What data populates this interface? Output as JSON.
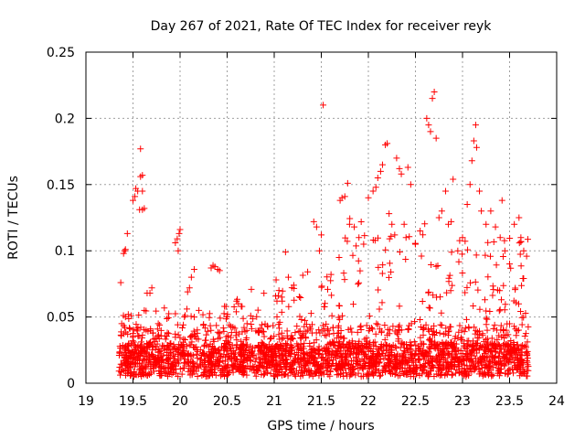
{
  "chart_data": {
    "type": "scatter",
    "title": "Day 267 of 2021, Rate Of TEC Index for receiver reyk",
    "xlabel": "GPS time / hours",
    "ylabel": "ROTI / TECUs",
    "xlim": [
      19,
      24
    ],
    "ylim": [
      0,
      0.25
    ],
    "xticks": [
      "19",
      "19.5",
      "20",
      "20.5",
      "21",
      "21.5",
      "22",
      "22.5",
      "23",
      "23.5",
      "24"
    ],
    "yticks": [
      "0",
      "0.05",
      "0.1",
      "0.15",
      "0.2",
      "0.25"
    ],
    "grid": true,
    "marker": "+",
    "color": "#ff0000",
    "series": [
      {
        "points": [
          [
            19.37,
            0.076
          ],
          [
            19.4,
            0.098
          ],
          [
            19.41,
            0.1
          ],
          [
            19.42,
            0.101
          ],
          [
            19.44,
            0.113
          ],
          [
            19.5,
            0.138
          ],
          [
            19.52,
            0.141
          ],
          [
            19.53,
            0.147
          ],
          [
            19.55,
            0.145
          ],
          [
            19.58,
            0.156
          ],
          [
            19.6,
            0.157
          ],
          [
            19.58,
            0.177
          ],
          [
            19.57,
            0.131
          ],
          [
            19.6,
            0.131
          ],
          [
            19.62,
            0.132
          ],
          [
            19.6,
            0.145
          ],
          [
            19.38,
            0.045
          ],
          [
            19.42,
            0.05
          ],
          [
            19.45,
            0.052
          ],
          [
            19.48,
            0.051
          ],
          [
            19.62,
            0.055
          ],
          [
            19.65,
            0.068
          ],
          [
            19.68,
            0.068
          ],
          [
            19.7,
            0.072
          ],
          [
            19.95,
            0.106
          ],
          [
            19.97,
            0.109
          ],
          [
            19.99,
            0.113
          ],
          [
            20.0,
            0.116
          ],
          [
            19.98,
            0.1
          ],
          [
            20.08,
            0.069
          ],
          [
            20.1,
            0.072
          ],
          [
            20.12,
            0.08
          ],
          [
            20.15,
            0.086
          ],
          [
            20.2,
            0.055
          ],
          [
            20.33,
            0.087
          ],
          [
            20.35,
            0.089
          ],
          [
            20.37,
            0.088
          ],
          [
            20.4,
            0.086
          ],
          [
            20.42,
            0.085
          ],
          [
            20.6,
            0.062
          ],
          [
            20.62,
            0.06
          ],
          [
            20.65,
            0.058
          ],
          [
            21.02,
            0.078
          ],
          [
            21.05,
            0.07
          ],
          [
            21.08,
            0.065
          ],
          [
            21.12,
            0.099
          ],
          [
            21.15,
            0.08
          ],
          [
            21.42,
            0.122
          ],
          [
            21.45,
            0.118
          ],
          [
            21.5,
            0.112
          ],
          [
            21.52,
            0.21
          ],
          [
            21.48,
            0.1
          ],
          [
            21.7,
            0.138
          ],
          [
            21.72,
            0.14
          ],
          [
            21.75,
            0.141
          ],
          [
            21.78,
            0.151
          ],
          [
            21.8,
            0.12
          ],
          [
            21.85,
            0.118
          ],
          [
            21.9,
            0.11
          ],
          [
            21.95,
            0.105
          ],
          [
            22.0,
            0.14
          ],
          [
            22.05,
            0.145
          ],
          [
            22.08,
            0.148
          ],
          [
            22.1,
            0.155
          ],
          [
            22.13,
            0.16
          ],
          [
            22.15,
            0.165
          ],
          [
            22.18,
            0.18
          ],
          [
            22.2,
            0.181
          ],
          [
            22.22,
            0.128
          ],
          [
            22.25,
            0.12
          ],
          [
            22.28,
            0.112
          ],
          [
            22.3,
            0.17
          ],
          [
            22.33,
            0.162
          ],
          [
            22.35,
            0.158
          ],
          [
            22.38,
            0.12
          ],
          [
            22.4,
            0.11
          ],
          [
            22.42,
            0.163
          ],
          [
            22.45,
            0.15
          ],
          [
            22.5,
            0.105
          ],
          [
            22.55,
            0.115
          ],
          [
            22.62,
            0.2
          ],
          [
            22.64,
            0.195
          ],
          [
            22.66,
            0.19
          ],
          [
            22.68,
            0.215
          ],
          [
            22.7,
            0.22
          ],
          [
            22.72,
            0.185
          ],
          [
            22.75,
            0.125
          ],
          [
            22.78,
            0.13
          ],
          [
            22.82,
            0.145
          ],
          [
            22.85,
            0.12
          ],
          [
            22.88,
            0.122
          ],
          [
            22.9,
            0.154
          ],
          [
            22.95,
            0.1
          ],
          [
            23.0,
            0.11
          ],
          [
            23.05,
            0.135
          ],
          [
            23.08,
            0.15
          ],
          [
            23.1,
            0.168
          ],
          [
            23.12,
            0.183
          ],
          [
            23.14,
            0.195
          ],
          [
            23.15,
            0.178
          ],
          [
            23.18,
            0.145
          ],
          [
            23.2,
            0.13
          ],
          [
            23.25,
            0.12
          ],
          [
            23.3,
            0.13
          ],
          [
            23.35,
            0.118
          ],
          [
            23.4,
            0.11
          ],
          [
            23.42,
            0.138
          ],
          [
            23.45,
            0.1
          ],
          [
            23.5,
            0.09
          ],
          [
            23.55,
            0.12
          ],
          [
            23.6,
            0.125
          ],
          [
            23.62,
            0.11
          ],
          [
            23.65,
            0.1
          ]
        ]
      }
    ]
  }
}
